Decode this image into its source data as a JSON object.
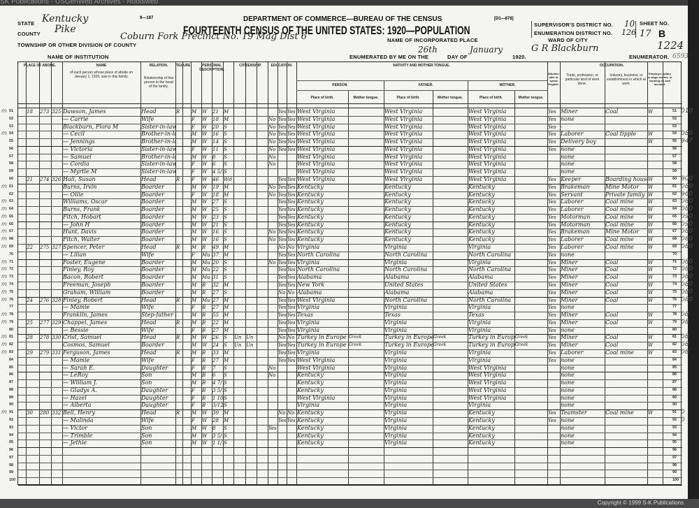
{
  "watermark": "SK Publications - USGenWeb Archives - Rootsweb",
  "copyright": "Copyright © 1999 S-K Publications",
  "form": {
    "number": "9—187",
    "code": "[D1—878]",
    "department": "DEPARTMENT OF COMMERCE—BUREAU OF THE CENSUS",
    "title": "FOURTEENTH CENSUS OF THE UNITED STATES: 1920—POPULATION",
    "state_label": "STATE",
    "state": "Kentucky",
    "county_label": "COUNTY",
    "county": "Pike",
    "township_label": "TOWNSHIP OR OTHER DIVISION OF COUNTY",
    "township": "Coburn Fork Precinct No. 19 Mag Dist 6",
    "incorporated_label": "NAME OF INCORPORATED PLACE",
    "institution_label": "NAME OF INSTITUTION",
    "supervisor_label": "SUPERVISOR'S DISTRICT NO.",
    "supervisor": "10",
    "enumeration_label": "ENUMERATION DISTRICT NO.",
    "enumeration": "126",
    "sheet_label": "SHEET NO.",
    "sheet": "17",
    "sheet_side": "B",
    "ward_label": "WARD OF CITY",
    "enumerated_label": "ENUMERATED BY ME ON THE",
    "day": "26th",
    "dayof_label": "DAY OF",
    "month": "January",
    "year": "1920.",
    "enumerator": "G R Blackburn",
    "enumerator_label": "ENUMERATOR.",
    "stamp": "1224",
    "stamp2": "6593"
  },
  "headers": {
    "abode": "PLACE OF ABODE.",
    "name": "NAME",
    "name_sub": "of each person whose place of abode on January 1, 1920, was in this family.",
    "relation": "RELATION.",
    "relation_sub": "Relationship of this person to the head of the family.",
    "tenure": "TENURE.",
    "personal": "PERSONAL DESCRIPTION.",
    "citizenship": "CITIZENSHIP.",
    "education": "EDUCATION.",
    "nativity": "NATIVITY AND MOTHER TONGUE.",
    "person": "PERSON.",
    "father": "FATHER.",
    "mother": "MOTHER.",
    "pob": "Place of birth.",
    "tongue": "Mother tongue.",
    "english": "Whether able to speak English.",
    "occupation": "OCCUPATION.",
    "trade": "Trade, profession, or particular kind of work done.",
    "industry": "Industry, business, or establishment in which at work.",
    "class": "Employer, salary or wage worker, or working on own account."
  },
  "rows": [
    {
      "line": "51",
      "m": "m",
      "house": "18",
      "dwelling": "273",
      "family": "325",
      "name": "Dawson, James",
      "rel": "Head",
      "home": "R",
      "sex": "M",
      "race": "W",
      "age": "21",
      "mar": "M",
      "read": "Yes",
      "write": "Yes",
      "bp": "West Virginia",
      "fbp": "West Virginia",
      "mbp": "West Virginia",
      "eng": "Yes",
      "occ": "Miner",
      "ind": "Coal",
      "cls": "W",
      "code": "010"
    },
    {
      "line": "52",
      "name": "— Carrie",
      "rel": "Wife",
      "sex": "F",
      "race": "W",
      "age": "18",
      "mar": "M",
      "school": "No",
      "read": "Yes",
      "write": "Yes",
      "bp": "West Virginia",
      "fbp": "West Virginia",
      "mbp": "West Virginia",
      "eng": "Yes",
      "occ": "none"
    },
    {
      "line": "53",
      "name": "Blackburn, Flora M",
      "rel": "Sister-in-law",
      "sex": "F",
      "race": "W",
      "age": "20",
      "mar": "S",
      "school": "No",
      "read": "Yes",
      "write": "Yes",
      "bp": "West Virginia",
      "fbp": "West Virginia",
      "mbp": "West Virginia",
      "eng": "Yes",
      "occ": "-"
    },
    {
      "line": "54",
      "m": "m",
      "name": "— Cecil",
      "rel": "Brother-in-law",
      "sex": "M",
      "race": "W",
      "age": "16",
      "mar": "S",
      "school": "No",
      "read": "Yes",
      "write": "Yes",
      "bp": "West Virginia",
      "fbp": "West Virginia",
      "mbp": "West Virginia",
      "eng": "Yes",
      "occ": "Laborer",
      "ind": "Coal tipple",
      "cls": "W",
      "code": "080"
    },
    {
      "line": "55",
      "name": "— Jennings",
      "rel": "Brother-in-law",
      "sex": "M",
      "race": "W",
      "age": "14",
      "mar": "S",
      "school": "No",
      "read": "Yes",
      "write": "Yes",
      "bp": "West Virginia",
      "fbp": "West Virginia",
      "mbp": "West Virginia",
      "eng": "Yes",
      "occ": "Delivery boy",
      "cls": "W",
      "code": "947"
    },
    {
      "line": "56",
      "name": "— Victoria",
      "rel": "Sister-in-law",
      "sex": "F",
      "race": "W",
      "age": "11",
      "mar": "S",
      "school": "No",
      "read": "Yes",
      "write": "Yes",
      "bp": "West Virginia",
      "fbp": "West Virginia",
      "mbp": "West Virginia",
      "eng": "Yes",
      "occ": "none"
    },
    {
      "line": "57",
      "name": "— Samuel",
      "rel": "Brother-in-law",
      "sex": "M",
      "race": "W",
      "age": "8",
      "mar": "S",
      "school": "No",
      "bp": "West Virginia",
      "fbp": "West Virginia",
      "mbp": "West Virginia",
      "occ": "none"
    },
    {
      "line": "58",
      "name": "— Cordia",
      "rel": "Sister-in-law",
      "sex": "F",
      "race": "W",
      "age": "6",
      "mar": "S",
      "school": "No",
      "bp": "West Virginia",
      "fbp": "West Virginia",
      "mbp": "West Virginia",
      "occ": "none"
    },
    {
      "line": "59",
      "name": "— Myrtle M",
      "rel": "Sister-in-law",
      "sex": "F",
      "race": "W",
      "age": "4 5/12",
      "mar": "S",
      "bp": "West Virginia",
      "fbp": "West Virginia",
      "mbp": "West Virginia",
      "occ": "none"
    },
    {
      "line": "60",
      "house": "21",
      "dwelling": "274",
      "family": "326",
      "name": "Hall, Susan",
      "rel": "Head",
      "home": "R",
      "sex": "F",
      "race": "W",
      "age": "46",
      "mar": "Wd",
      "read": "Yes",
      "write": "Yes",
      "bp": "West Virginia",
      "fbp": "West Virginia",
      "mbp": "West Virginia",
      "eng": "Yes",
      "occ": "Keeper",
      "ind": "Boarding house",
      "cls": "W",
      "code": "900"
    },
    {
      "line": "61",
      "m": "m",
      "name": "Burns, Irvin",
      "rel": "Boarder",
      "sex": "M",
      "race": "W",
      "age": "19",
      "mar": "M",
      "school": "No",
      "read": "Yes",
      "write": "Yes",
      "bp": "Kentucky",
      "fbp": "Kentucky",
      "mbp": "Kentucky",
      "eng": "Yes",
      "occ": "Brakeman",
      "ind": "Mine Motor",
      "cls": "W",
      "code": "080"
    },
    {
      "line": "62",
      "name": "— Ollie",
      "rel": "Boarder",
      "sex": "F",
      "race": "W",
      "age": "18",
      "mar": "M",
      "school": "No",
      "read": "Yes",
      "write": "Yes",
      "bp": "Kentucky",
      "fbp": "Kentucky",
      "mbp": "Kentucky",
      "eng": "Yes",
      "occ": "Servant",
      "ind": "Private family",
      "cls": "W",
      "code": "960"
    },
    {
      "line": "63",
      "m": "m",
      "name": "Williams, Oscar",
      "rel": "Boarder",
      "sex": "M",
      "race": "W",
      "age": "27",
      "mar": "S",
      "read": "Yes",
      "write": "Yes",
      "bp": "Kentucky",
      "fbp": "Kentucky",
      "mbp": "Kentucky",
      "eng": "Yes",
      "occ": "Laborer",
      "ind": "Coal mine",
      "cls": "W",
      "code": "080"
    },
    {
      "line": "64",
      "m": "m",
      "name": "Burns, Frank",
      "rel": "Boarder",
      "sex": "M",
      "race": "W",
      "age": "25",
      "mar": "S",
      "read": "Yes",
      "write": "Yes",
      "bp": "Kentucky",
      "fbp": "Kentucky",
      "mbp": "Kentucky",
      "eng": "Yes",
      "occ": "Laborer",
      "ind": "Coal mine",
      "cls": "W",
      "code": "080"
    },
    {
      "line": "65",
      "m": "m",
      "name": "Fitch, Hobart",
      "rel": "Boarder",
      "sex": "M",
      "race": "W",
      "age": "23",
      "mar": "S",
      "read": "Yes",
      "write": "Yes",
      "bp": "Kentucky",
      "fbp": "Kentucky",
      "mbp": "Kentucky",
      "eng": "Yes",
      "occ": "Motorman",
      "ind": "Coal mine",
      "cls": "W",
      "code": "090"
    },
    {
      "line": "66",
      "m": "m",
      "name": "— John H",
      "rel": "Boarder",
      "sex": "M",
      "race": "W",
      "age": "21",
      "mar": "S",
      "read": "Yes",
      "write": "Yes",
      "bp": "Kentucky",
      "fbp": "Kentucky",
      "mbp": "Kentucky",
      "eng": "Yes",
      "occ": "Motorman",
      "ind": "Coal mine",
      "cls": "W",
      "code": "090"
    },
    {
      "line": "67",
      "m": "m",
      "name": "Hunt, Davis",
      "rel": "Boarder",
      "sex": "M",
      "race": "W",
      "age": "16",
      "mar": "S",
      "school": "No",
      "read": "Yes",
      "write": "Yes",
      "bp": "Kentucky",
      "fbp": "Kentucky",
      "mbp": "Kentucky",
      "eng": "Yes",
      "occ": "Brakeman",
      "ind": "Mine Motor",
      "cls": "W",
      "code": "080"
    },
    {
      "line": "68",
      "m": "m",
      "name": "Fitch, Walter",
      "rel": "Boarder",
      "sex": "M",
      "race": "W",
      "age": "16",
      "mar": "S",
      "school": "No",
      "read": "Yes",
      "write": "Yes",
      "bp": "Kentucky",
      "fbp": "Kentucky",
      "mbp": "Kentucky",
      "eng": "Yes",
      "occ": "Laborer",
      "ind": "Coal mine",
      "cls": "W",
      "code": "080"
    },
    {
      "line": "69",
      "m": "m",
      "house": "22",
      "dwelling": "275",
      "family": "327",
      "name": "Spencer, Peter",
      "rel": "Head",
      "home": "R",
      "sex": "M",
      "race": "B",
      "age": "49",
      "mar": "M",
      "read": "No",
      "write": "No",
      "bp": "Virginia",
      "fbp": "Virginia",
      "mbp": "Virginia",
      "eng": "Yes",
      "occ": "Laborer",
      "ind": "Coal mine",
      "cls": "W",
      "code": "080"
    },
    {
      "line": "70",
      "name": "— Lilian",
      "rel": "Wife",
      "sex": "F",
      "race": "Mu",
      "age": "37",
      "mar": "M",
      "read": "Yes",
      "write": "Yes",
      "bp": "North Carolina",
      "fbp": "North Carolina",
      "mbp": "North Carolina",
      "eng": "Yes",
      "occ": "none"
    },
    {
      "line": "71",
      "m": "m",
      "name": "Foster, Eugene",
      "rel": "Boarder",
      "sex": "M",
      "race": "Mu",
      "age": "20",
      "mar": "S",
      "school": "No",
      "read": "Yes",
      "write": "Yes",
      "bp": "Virginia",
      "fbp": "Virginia",
      "mbp": "Virginia",
      "eng": "Yes",
      "occ": "Miner",
      "ind": "Coal",
      "cls": "W",
      "code": "080"
    },
    {
      "line": "72",
      "m": "m",
      "name": "Finley, Roy",
      "rel": "Boarder",
      "sex": "M",
      "race": "Mu",
      "age": "22",
      "mar": "S",
      "read": "Yes",
      "write": "Yes",
      "bp": "North Carolina",
      "fbp": "North Carolina",
      "mbp": "North Carolina",
      "eng": "Yes",
      "occ": "Miner",
      "ind": "Coal",
      "cls": "W",
      "code": "080"
    },
    {
      "line": "73",
      "m": "m",
      "name": "Bacon, Robert",
      "rel": "Boarder",
      "sex": "M",
      "race": "Mu",
      "age": "31",
      "mar": "S",
      "read": "Yes",
      "write": "Yes",
      "bp": "Alabama",
      "fbp": "Alabama",
      "mbp": "Alabama",
      "eng": "Yes",
      "occ": "Miner",
      "ind": "Coal",
      "cls": "W",
      "code": "080"
    },
    {
      "line": "74",
      "m": "m",
      "name": "Freeman, Joseph",
      "rel": "Boarder",
      "sex": "M",
      "race": "B",
      "age": "32",
      "mar": "M",
      "read": "Yes",
      "write": "Yes",
      "bp": "New York",
      "fbp": "United States",
      "mbp": "United States",
      "eng": "Yes",
      "occ": "Miner",
      "ind": "Coal",
      "cls": "W",
      "code": "080"
    },
    {
      "line": "75",
      "m": "m",
      "name": "Graham, William",
      "rel": "Boarder",
      "sex": "M",
      "race": "B",
      "age": "27",
      "mar": "S",
      "read": "No",
      "write": "No",
      "bp": "Alabama",
      "fbp": "Alabama",
      "mbp": "Alabama",
      "eng": "Yes",
      "occ": "Miner",
      "ind": "Coal",
      "cls": "W",
      "code": "080"
    },
    {
      "line": "76",
      "m": "m",
      "house": "24",
      "dwelling": "276",
      "family": "328",
      "name": "Finley, Robert",
      "rel": "Head",
      "home": "R",
      "sex": "M",
      "race": "Mu",
      "age": "27",
      "mar": "M",
      "read": "Yes",
      "write": "Yes",
      "bp": "West Virginia",
      "fbp": "North Carolina",
      "mbp": "North Carolina",
      "eng": "Yes",
      "occ": "Miner",
      "ind": "Coal",
      "cls": "W",
      "code": "080"
    },
    {
      "line": "77",
      "name": "— Mamie",
      "rel": "Wife",
      "sex": "F",
      "race": "B",
      "age": "27",
      "mar": "M",
      "read": "Yes",
      "write": "Yes",
      "bp": "Virginia",
      "fbp": "Virginia",
      "mbp": "Virginia",
      "eng": "Yes",
      "occ": "none"
    },
    {
      "line": "78",
      "m": "m",
      "name": "Franklin, James",
      "rel": "Step-father",
      "sex": "M",
      "race": "B",
      "age": "55",
      "mar": "M",
      "read": "Yes",
      "write": "Yes",
      "bp": "Texas",
      "fbp": "Texas",
      "mbp": "Texas",
      "eng": "Yes",
      "occ": "Miner",
      "ind": "Coal",
      "cls": "W",
      "code": "08"
    },
    {
      "line": "79",
      "m": "m",
      "house": "25",
      "dwelling": "277",
      "family": "329",
      "name": "Chappel, James",
      "rel": "Head",
      "home": "R",
      "sex": "M",
      "race": "B",
      "age": "22",
      "mar": "M",
      "read": "Yes",
      "write": "Yes",
      "bp": "Virginia",
      "fbp": "Virginia",
      "mbp": "Virginia",
      "eng": "Yes",
      "occ": "Miner",
      "ind": "Coal",
      "cls": "W",
      "code": "08"
    },
    {
      "line": "80",
      "name": "— Bessie",
      "rel": "Wife",
      "sex": "F",
      "race": "B",
      "age": "27",
      "mar": "M",
      "read": "Yes",
      "write": "Yes",
      "bp": "Virginia",
      "fbp": "Virginia",
      "mbp": "Virginia",
      "eng": "Yes",
      "occ": "none"
    },
    {
      "line": "81",
      "m": "m",
      "house": "28",
      "dwelling": "278",
      "family": "330",
      "name": "Crist, Samuel",
      "rel": "Head",
      "home": "R",
      "sex": "M",
      "race": "W",
      "age": "26",
      "mar": "S",
      "imm": "Un",
      "nat": "Un",
      "read": "No",
      "write": "No",
      "bp": "Turkey in Europe",
      "tongue": "Greek",
      "fbp": "Turkey in Europe",
      "ftongue": "Greek",
      "mbp": "Turkey in Europe",
      "mtongue": "Greek",
      "eng": "Yes",
      "occ": "Miner",
      "ind": "Coal",
      "cls": "W",
      "code": "08"
    },
    {
      "line": "82",
      "m": "m",
      "name": "Cosmos, Samuel",
      "rel": "Boarder",
      "sex": "M",
      "race": "W",
      "age": "24",
      "mar": "S",
      "imm": "Un",
      "nat": "Un",
      "read": "Yes",
      "write": "Yes",
      "bp": "Turkey in Europe",
      "tongue": "Greek",
      "fbp": "Turkey in Europe",
      "ftongue": "Greek",
      "mbp": "Turkey in Europe",
      "mtongue": "Greek",
      "eng": "Yes",
      "occ": "Miner",
      "ind": "Coal",
      "cls": "W",
      "code": "08"
    },
    {
      "line": "83",
      "m": "m",
      "house": "29",
      "dwelling": "279",
      "family": "331",
      "name": "Ferguson, James",
      "rel": "Head",
      "home": "R",
      "sex": "M",
      "race": "B",
      "age": "33",
      "mar": "M",
      "read": "Yes",
      "write": "Yes",
      "bp": "Virginia",
      "fbp": "Virginia",
      "mbp": "Virginia",
      "eng": "Yes",
      "occ": "Laborer",
      "ind": "Coal mine",
      "cls": "W",
      "code": "08"
    },
    {
      "line": "84",
      "name": "— Mamie",
      "rel": "Wife",
      "sex": "F",
      "race": "B",
      "age": "27",
      "mar": "M",
      "read": "Yes",
      "write": "Yes",
      "bp": "West Virginia",
      "fbp": "Virginia",
      "mbp": "Virginia",
      "eng": "Yes",
      "occ": "none"
    },
    {
      "line": "85",
      "name": "— Sarah E.",
      "rel": "Daughter",
      "sex": "F",
      "race": "B",
      "age": "7",
      "mar": "S",
      "school": "No",
      "bp": "West Virginia",
      "fbp": "Virginia",
      "mbp": "West Virginia",
      "occ": "none"
    },
    {
      "line": "86",
      "name": "— LeRoy",
      "rel": "Son",
      "sex": "M",
      "race": "B",
      "age": "6",
      "mar": "S",
      "school": "No",
      "bp": "Kentucky",
      "fbp": "Virginia",
      "mbp": "West Virginia",
      "occ": "none"
    },
    {
      "line": "87",
      "name": "— William J.",
      "rel": "Son",
      "sex": "M",
      "race": "B",
      "age": "4 7/12",
      "mar": "S",
      "bp": "Kentucky",
      "fbp": "Virginia",
      "mbp": "West Virginia",
      "occ": "none"
    },
    {
      "line": "88",
      "name": "— Gladys A.",
      "rel": "Daughter",
      "sex": "F",
      "race": "B",
      "age": "3 5/12",
      "mar": "S",
      "bp": "Kentucky",
      "fbp": "Virginia",
      "mbp": "West Virginia",
      "occ": "none"
    },
    {
      "line": "89",
      "name": "— Hazel",
      "rel": "Daughter",
      "sex": "F",
      "race": "B",
      "age": "1 10/12",
      "mar": "S",
      "bp": "West Virginia",
      "fbp": "Virginia",
      "mbp": "West Virginia",
      "occ": "none"
    },
    {
      "line": "90",
      "name": "— Alberta",
      "rel": "Daughter",
      "sex": "F",
      "race": "B",
      "age": "3/12",
      "mar": "S",
      "bp": "Virginia",
      "fbp": "Virginia",
      "mbp": "Virginia",
      "occ": "none"
    },
    {
      "line": "91",
      "m": "m",
      "house": "30",
      "dwelling": "280",
      "family": "332",
      "name": "Bell, Henry",
      "rel": "Head",
      "home": "R",
      "sex": "M",
      "race": "W",
      "age": "39",
      "mar": "M",
      "read": "No",
      "write": "No",
      "bp": "Kentucky",
      "fbp": "Virginia",
      "mbp": "Kentucky",
      "eng": "Yes",
      "occ": "Teamster",
      "ind": "Coal mine",
      "cls": "W",
      "code": "0"
    },
    {
      "line": "92",
      "name": "— Malinda",
      "rel": "Wife",
      "sex": "F",
      "race": "W",
      "age": "28",
      "mar": "M",
      "read": "Yes",
      "write": "Yes",
      "bp": "Kentucky",
      "fbp": "Virginia",
      "mbp": "Kentucky",
      "eng": "Yes",
      "occ": "none",
      "code": "0"
    },
    {
      "line": "93",
      "name": "— Victor",
      "rel": "Son",
      "sex": "M",
      "race": "W",
      "age": "8",
      "mar": "S",
      "school": "Yes",
      "bp": "Kentucky",
      "fbp": "Virginia",
      "mbp": "Kentucky",
      "occ": "none"
    },
    {
      "line": "94",
      "name": "— Trimble",
      "rel": "Son",
      "sex": "M",
      "race": "W",
      "age": "3 5/12",
      "mar": "S",
      "bp": "Kentucky",
      "fbp": "Virginia",
      "mbp": "Kentucky",
      "occ": "none"
    },
    {
      "line": "95",
      "name": "— Jethie",
      "rel": "Son",
      "sex": "M",
      "race": "W",
      "age": "1 1/12",
      "mar": "S",
      "bp": "Kentucky",
      "fbp": "Virginia",
      "mbp": "Kentucky",
      "occ": "none"
    },
    {
      "line": "96"
    },
    {
      "line": "97"
    },
    {
      "line": "98"
    },
    {
      "line": "99"
    },
    {
      "line": "100"
    }
  ]
}
